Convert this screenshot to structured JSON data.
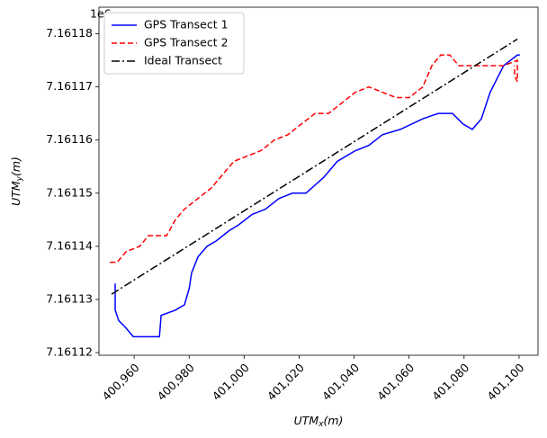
{
  "chart_data": {
    "type": "line",
    "xlabel": "UTM_x(m)",
    "ylabel": "UTM_y(m)",
    "y_offset_label": "1e6",
    "xlim": [
      400947.2,
      401106.9
    ],
    "ylim": [
      7.1611195,
      7.161185
    ],
    "xticks": [
      {
        "value": 400960,
        "label": "400,960"
      },
      {
        "value": 400980,
        "label": "400,980"
      },
      {
        "value": 401000,
        "label": "401,000"
      },
      {
        "value": 401020,
        "label": "401,020"
      },
      {
        "value": 401040,
        "label": "401,040"
      },
      {
        "value": 401060,
        "label": "401,060"
      },
      {
        "value": 401080,
        "label": "401,080"
      },
      {
        "value": 401100,
        "label": "401,100"
      }
    ],
    "yticks": [
      7.16112,
      7.16113,
      7.16114,
      7.16115,
      7.16116,
      7.16117,
      7.16118
    ],
    "legend": "upper left",
    "series": [
      {
        "name": "GPS Transect 1",
        "color": "#0000ff",
        "style": "solid",
        "x": [
          400953.1,
          400953.1,
          400954.4,
          400956.4,
          400959.7,
          400965.2,
          400969.2,
          400969.8,
          400975.0,
          400978.3,
          400980.0,
          400980.9,
          400983.2,
          400986.5,
          400989.8,
          400994.7,
          400997.9,
          401002.9,
          401007.8,
          401012.7,
          401017.6,
          401022.5,
          401029.0,
          401033.9,
          401040.5,
          401045.4,
          401050.3,
          401056.8,
          401065.0,
          401070.6,
          401075.8,
          401079.7,
          401083.0,
          401086.3,
          401089.5,
          401094.4,
          401099.4,
          401100.3
        ],
        "values": [
          7.161133,
          7.161128,
          7.161126,
          7.161125,
          7.161123,
          7.161123,
          7.161123,
          7.161127,
          7.161128,
          7.161129,
          7.161132,
          7.161135,
          7.161138,
          7.16114,
          7.161141,
          7.161143,
          7.161144,
          7.161146,
          7.161147,
          7.161149,
          7.16115,
          7.16115,
          7.161153,
          7.161156,
          7.161158,
          7.161159,
          7.161161,
          7.161162,
          7.161164,
          7.161165,
          7.161165,
          7.161163,
          7.161162,
          7.161164,
          7.161169,
          7.161174,
          7.161176,
          7.161176
        ]
      },
      {
        "name": "GPS Transect 2",
        "color": "#ff0000",
        "style": "dashed",
        "x": [
          400951.2,
          400953.8,
          400957.1,
          400962.0,
          400965.2,
          400971.8,
          400975.0,
          400978.3,
          400983.2,
          400988.1,
          400993.0,
          400996.3,
          401001.2,
          401006.1,
          401011.0,
          401015.9,
          401020.8,
          401025.8,
          401030.7,
          401035.6,
          401040.5,
          401045.4,
          401050.3,
          401055.2,
          401060.1,
          401065.0,
          401068.3,
          401071.5,
          401074.8,
          401078.1,
          401081.4,
          401086.3,
          401089.5,
          401094.4,
          401099.4,
          401099.4,
          401098.4,
          401098.4
        ],
        "values": [
          7.161137,
          7.161137,
          7.161139,
          7.16114,
          7.161142,
          7.161142,
          7.161145,
          7.161147,
          7.161149,
          7.161151,
          7.161154,
          7.161156,
          7.161157,
          7.161158,
          7.16116,
          7.161161,
          7.161163,
          7.161165,
          7.161165,
          7.161167,
          7.161169,
          7.16117,
          7.161169,
          7.161168,
          7.161168,
          7.16117,
          7.161174,
          7.161176,
          7.161176,
          7.161174,
          7.161174,
          7.161174,
          7.161174,
          7.161174,
          7.161175,
          7.161171,
          7.161172,
          7.161174
        ]
      },
      {
        "name": "Ideal Transect",
        "color": "#000000",
        "style": "dashdot",
        "x": [
          400951.8,
          401099.4
        ],
        "values": [
          7.161131,
          7.161179
        ]
      }
    ]
  }
}
